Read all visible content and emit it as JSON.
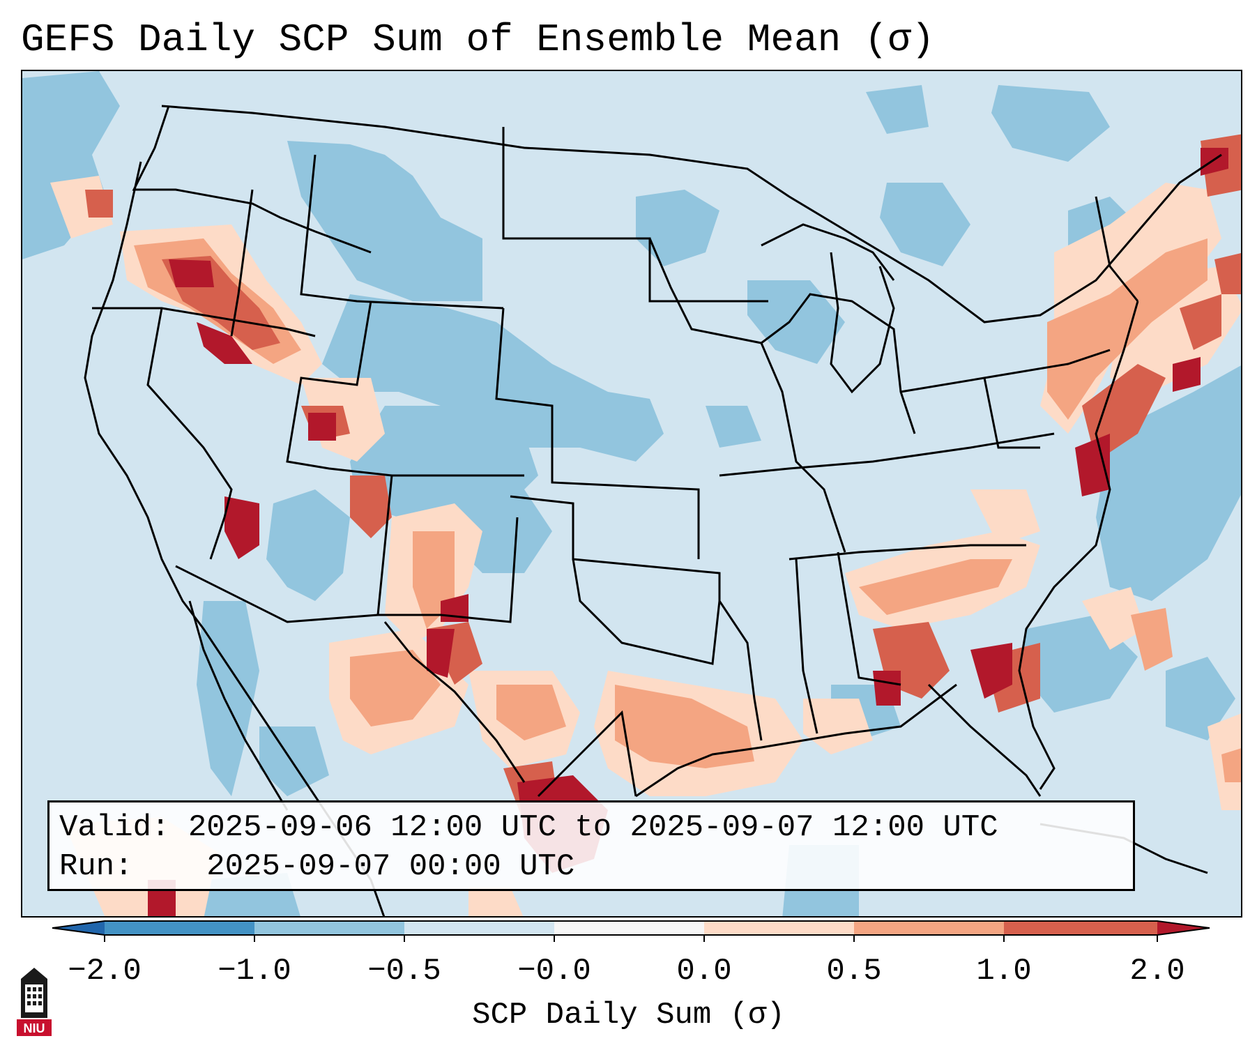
{
  "title": "GEFS Daily SCP Sum of Ensemble Mean (σ)",
  "info": {
    "valid_label": "Valid:",
    "valid_value": "2025-09-06 12:00 UTC to 2025-09-07 12:00 UTC",
    "run_label": "Run:",
    "run_value": "2025-09-07 00:00 UTC"
  },
  "colorbar": {
    "label": "SCP Daily Sum (σ)",
    "ticks": [
      "−2.0",
      "−1.0",
      "−0.5",
      "−0.0",
      "0.0",
      "0.5",
      "1.0",
      "2.0"
    ],
    "colors": [
      "#4392c4",
      "#92c5de",
      "#d2e5f0",
      "#f6f6f6",
      "#fddbc7",
      "#f4a582",
      "#d6604d"
    ],
    "extend_low_color": "#2166ac",
    "extend_high_color": "#b2182b"
  },
  "map": {
    "background_color": "#d2e5f0",
    "feature_categories": [
      "−1.0 to −0.5",
      "0.0 to 0.5",
      "0.5 to 1.0",
      "1.0 to 2.0",
      "> 2.0"
    ]
  },
  "logo": {
    "text": "NIU",
    "color": "#c8102e"
  }
}
